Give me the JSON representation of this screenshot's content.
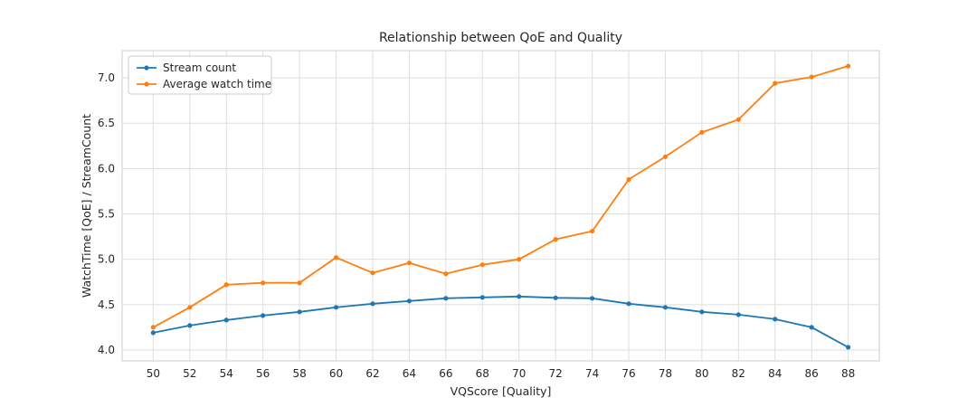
{
  "chart_data": {
    "type": "line",
    "title": "Relationship between QoE and Quality",
    "xlabel": "VQScore [Quality]",
    "ylabel": "WatchTime [QoE] / StreamCount",
    "x": [
      50,
      52,
      54,
      56,
      58,
      60,
      62,
      64,
      66,
      68,
      70,
      72,
      74,
      76,
      78,
      80,
      82,
      84,
      86,
      88
    ],
    "xticks": [
      "50",
      "52",
      "54",
      "56",
      "58",
      "60",
      "62",
      "64",
      "66",
      "68",
      "70",
      "72",
      "74",
      "76",
      "78",
      "80",
      "82",
      "84",
      "86",
      "88"
    ],
    "yticks": [
      "4.0",
      "4.5",
      "5.0",
      "5.5",
      "6.0",
      "6.5",
      "7.0"
    ],
    "ylim": [
      3.88,
      7.3
    ],
    "xlim": [
      48.3,
      89.7
    ],
    "grid": true,
    "legend_position": "upper-left",
    "series": [
      {
        "name": "Stream count",
        "color": "#1f77b4",
        "values": [
          4.19,
          4.27,
          4.33,
          4.38,
          4.42,
          4.47,
          4.51,
          4.54,
          4.57,
          4.58,
          4.59,
          4.575,
          4.57,
          4.51,
          4.47,
          4.42,
          4.39,
          4.34,
          4.25,
          4.03
        ]
      },
      {
        "name": "Average watch time",
        "color": "#ff7f0e",
        "values": [
          4.25,
          4.47,
          4.72,
          4.74,
          4.74,
          5.02,
          4.85,
          4.96,
          4.84,
          4.94,
          5.0,
          5.22,
          5.31,
          5.88,
          6.13,
          6.4,
          6.54,
          6.94,
          7.01,
          7.13
        ]
      }
    ]
  }
}
